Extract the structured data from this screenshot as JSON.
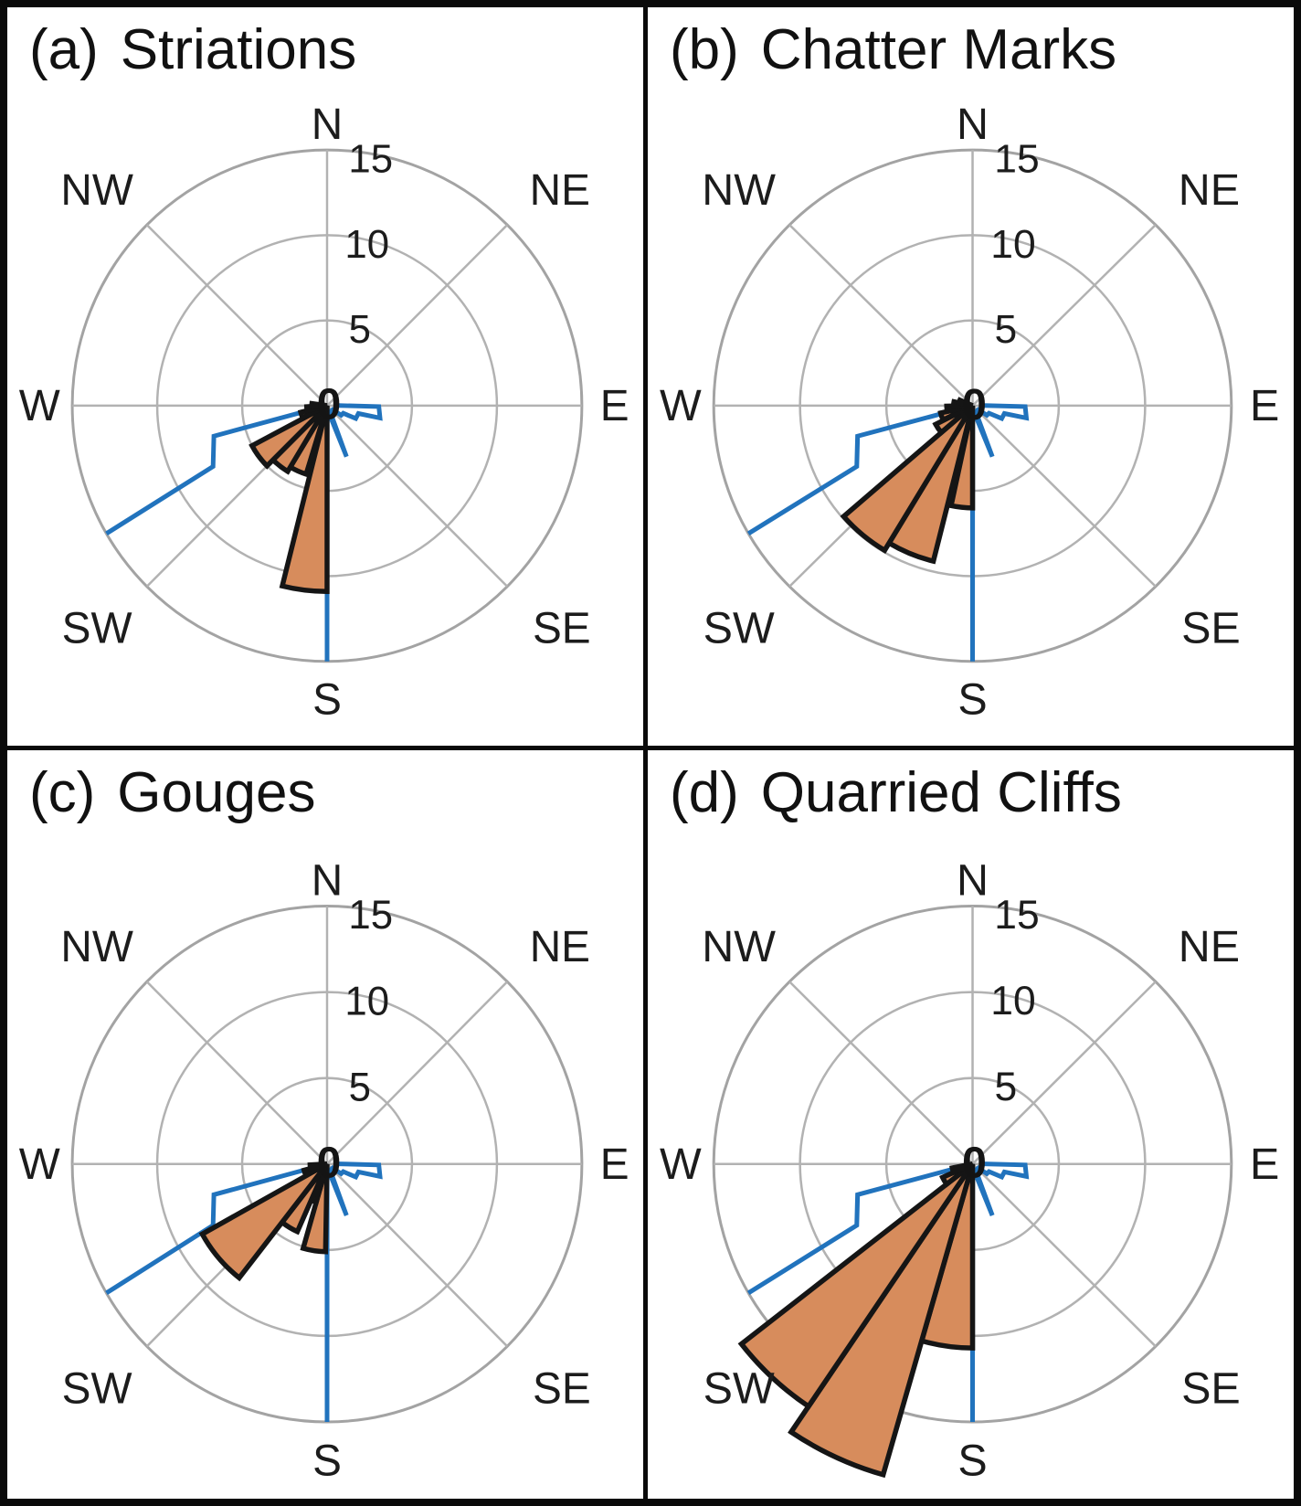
{
  "figure": {
    "panels": [
      {
        "index_label": "(a)",
        "title": "Striations"
      },
      {
        "index_label": "(b)",
        "title": "Chatter Marks"
      },
      {
        "index_label": "(c)",
        "title": "Gouges"
      },
      {
        "index_label": "(d)",
        "title": "Quarried Cliffs"
      }
    ],
    "colors": {
      "petal_fill": "#d78c5c",
      "petal_outline": "#151515",
      "blue_line": "#2173bd",
      "grid": "#b2b2b2",
      "outer_ring": "#a3a3a3",
      "text": "#1c1c1c",
      "border": "#0a0a0a"
    }
  },
  "chart_data": [
    {
      "type": "rose",
      "panel": "a",
      "title": "(a) Striations",
      "radial_max": 15,
      "radial_ticks": [
        5,
        10,
        15
      ],
      "center_label": "0",
      "compass_labels": [
        "N",
        "NE",
        "E",
        "SE",
        "S",
        "SW",
        "W",
        "NW"
      ],
      "grid": "on",
      "series_names": [
        "orange-sector-histogram",
        "blue-outline-histogram"
      ],
      "petals": [
        {
          "from_deg": 180,
          "to_deg": 194,
          "value": 10.9
        },
        {
          "from_deg": 197,
          "to_deg": 211,
          "value": 4.2
        },
        {
          "from_deg": 211,
          "to_deg": 225,
          "value": 4.5
        },
        {
          "from_deg": 225,
          "to_deg": 242,
          "value": 5.0
        },
        {
          "from_deg": 244,
          "to_deg": 256,
          "value": 1.6
        },
        {
          "from_deg": 256,
          "to_deg": 267,
          "value": 1.2
        },
        {
          "from_deg": 267,
          "to_deg": 278,
          "value": 0.9
        }
      ],
      "blue_line": [
        [
          88,
          0.4
        ],
        [
          91,
          3.05
        ],
        [
          103,
          3.2
        ],
        [
          104,
          1.9
        ],
        [
          114,
          1.85
        ],
        [
          115,
          1.05
        ],
        [
          124,
          1.0
        ],
        [
          126,
          0.4
        ],
        [
          153,
          0.4
        ],
        [
          159,
          3.2
        ],
        [
          167,
          0.4
        ],
        [
          179.3,
          0.4
        ],
        [
          180,
          15
        ],
        [
          180.7,
          0.4
        ],
        [
          256,
          0.6
        ],
        [
          255,
          6.9
        ],
        [
          242,
          7.6
        ],
        [
          240,
          15
        ]
      ]
    },
    {
      "type": "rose",
      "panel": "b",
      "title": "(b) Chatter Marks",
      "radial_max": 15,
      "radial_ticks": [
        5,
        10,
        15
      ],
      "center_label": "0",
      "compass_labels": [
        "N",
        "NE",
        "E",
        "SE",
        "S",
        "SW",
        "W",
        "NW"
      ],
      "grid": "on",
      "series_names": [
        "orange-sector-histogram",
        "blue-outline-histogram"
      ],
      "petals": [
        {
          "from_deg": 180,
          "to_deg": 192,
          "value": 6.0
        },
        {
          "from_deg": 194,
          "to_deg": 211,
          "value": 9.4
        },
        {
          "from_deg": 211,
          "to_deg": 229,
          "value": 9.9
        },
        {
          "from_deg": 229,
          "to_deg": 243,
          "value": 2.4
        },
        {
          "from_deg": 244,
          "to_deg": 257,
          "value": 1.9
        },
        {
          "from_deg": 257,
          "to_deg": 269,
          "value": 1.5
        },
        {
          "from_deg": 269,
          "to_deg": 282,
          "value": 1.1
        },
        {
          "from_deg": 282,
          "to_deg": 294,
          "value": 0.8
        }
      ],
      "blue_line": [
        [
          88,
          0.4
        ],
        [
          91,
          3.05
        ],
        [
          103,
          3.2
        ],
        [
          104,
          1.9
        ],
        [
          114,
          1.85
        ],
        [
          115,
          1.05
        ],
        [
          124,
          1.0
        ],
        [
          126,
          0.4
        ],
        [
          153,
          0.4
        ],
        [
          159,
          3.2
        ],
        [
          167,
          0.4
        ],
        [
          179.3,
          0.4
        ],
        [
          180,
          15
        ],
        [
          180.7,
          0.4
        ],
        [
          256,
          0.6
        ],
        [
          255,
          6.9
        ],
        [
          242,
          7.6
        ],
        [
          240,
          15
        ]
      ]
    },
    {
      "type": "rose",
      "panel": "c",
      "title": "(c) Gouges",
      "radial_max": 15,
      "radial_ticks": [
        5,
        10,
        15
      ],
      "center_label": "0",
      "compass_labels": [
        "N",
        "NE",
        "E",
        "SE",
        "S",
        "SW",
        "W",
        "NW"
      ],
      "grid": "on",
      "series_names": [
        "orange-sector-histogram",
        "blue-outline-histogram"
      ],
      "petals": [
        {
          "from_deg": 181,
          "to_deg": 196,
          "value": 5.1
        },
        {
          "from_deg": 196,
          "to_deg": 204,
          "value": 2.3
        },
        {
          "from_deg": 204,
          "to_deg": 218,
          "value": 4.3
        },
        {
          "from_deg": 218,
          "to_deg": 241,
          "value": 8.4
        },
        {
          "from_deg": 243,
          "to_deg": 255,
          "value": 1.4
        },
        {
          "from_deg": 255,
          "to_deg": 267,
          "value": 1.0
        }
      ],
      "blue_line": [
        [
          88,
          0.4
        ],
        [
          91,
          3.05
        ],
        [
          103,
          3.2
        ],
        [
          104,
          1.9
        ],
        [
          114,
          1.85
        ],
        [
          115,
          1.05
        ],
        [
          124,
          1.0
        ],
        [
          126,
          0.4
        ],
        [
          153,
          0.4
        ],
        [
          159,
          3.2
        ],
        [
          167,
          0.4
        ],
        [
          179.3,
          0.4
        ],
        [
          180,
          15
        ],
        [
          180.7,
          0.4
        ],
        [
          256,
          0.6
        ],
        [
          255,
          6.9
        ],
        [
          242,
          7.6
        ],
        [
          240,
          15
        ]
      ]
    },
    {
      "type": "rose",
      "panel": "d",
      "title": "(d) Quarried Cliffs",
      "radial_max": 15,
      "radial_ticks": [
        5,
        10,
        15
      ],
      "center_label": "0",
      "compass_labels": [
        "N",
        "NE",
        "E",
        "SE",
        "S",
        "SW",
        "W",
        "NW"
      ],
      "grid": "on",
      "series_names": [
        "orange-sector-histogram",
        "blue-outline-histogram"
      ],
      "petals": [
        {
          "from_deg": 180,
          "to_deg": 196,
          "value": 10.7
        },
        {
          "from_deg": 196,
          "to_deg": 214,
          "value": 18.8
        },
        {
          "from_deg": 214,
          "to_deg": 232,
          "value": 17.0
        },
        {
          "from_deg": 232,
          "to_deg": 246,
          "value": 1.9
        },
        {
          "from_deg": 246,
          "to_deg": 259,
          "value": 1.2
        }
      ],
      "blue_line": [
        [
          88,
          0.4
        ],
        [
          91,
          3.05
        ],
        [
          103,
          3.2
        ],
        [
          104,
          1.9
        ],
        [
          114,
          1.85
        ],
        [
          115,
          1.05
        ],
        [
          124,
          1.0
        ],
        [
          126,
          0.4
        ],
        [
          153,
          0.4
        ],
        [
          159,
          3.2
        ],
        [
          167,
          0.4
        ],
        [
          179.3,
          0.4
        ],
        [
          180,
          15
        ],
        [
          180.7,
          0.4
        ],
        [
          256,
          0.6
        ],
        [
          255,
          6.9
        ],
        [
          242,
          7.6
        ],
        [
          240,
          15
        ]
      ]
    }
  ]
}
